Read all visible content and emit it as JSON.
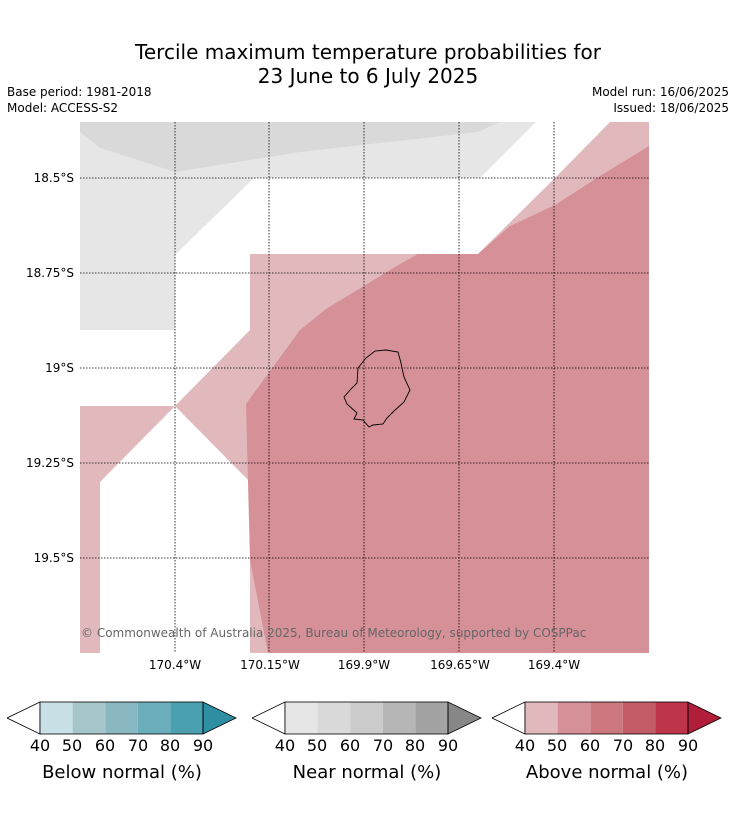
{
  "title_line1": "Tercile maximum temperature probabilities for",
  "title_line2": "23 June to 6 July 2025",
  "base_period": "Base period: 1981-2018",
  "model": "Model: ACCESS-S2",
  "model_run": "Model run: 16/06/2025",
  "issued": "Issued: 18/06/2025",
  "lat_labels": [
    "18.5°S",
    "18.75°S",
    "19°S",
    "19.25°S",
    "19.5°S"
  ],
  "lon_labels": [
    "170.4°W",
    "170.15°W",
    "169.9°W",
    "169.65°W",
    "169.4°W"
  ],
  "copyright": "© Commonwealth of Australia 2025, Bureau of Meteorology, supported by COSPPac",
  "colors": {
    "near_normal_50": "#e6e6e6",
    "near_normal_60": "#d9d9d9",
    "above_normal_50": "#e1b9bd",
    "above_normal_60": "#d69097",
    "coastline": "#000000",
    "gridline": "#000000"
  },
  "colorbars": [
    {
      "label": "Below normal (%)",
      "ticks": [
        "40",
        "50",
        "60",
        "70",
        "80",
        "90"
      ],
      "colors": [
        "#ffffff",
        "#c8e0e6",
        "#a6c6cc",
        "#89b8c3",
        "#6aaebc",
        "#4aa0b1",
        "#2e8fa2"
      ]
    },
    {
      "label": "Near normal (%)",
      "ticks": [
        "40",
        "50",
        "60",
        "70",
        "80",
        "90"
      ],
      "colors": [
        "#ffffff",
        "#e6e6e6",
        "#d9d9d9",
        "#cbcbcb",
        "#b6b6b6",
        "#a3a3a3",
        "#878787"
      ]
    },
    {
      "label": "Above normal (%)",
      "ticks": [
        "40",
        "50",
        "60",
        "70",
        "80",
        "90"
      ],
      "colors": [
        "#ffffff",
        "#e1b9bd",
        "#d69097",
        "#cd787f",
        "#c45c66",
        "#bd344b",
        "#b01e3a"
      ]
    }
  ]
}
